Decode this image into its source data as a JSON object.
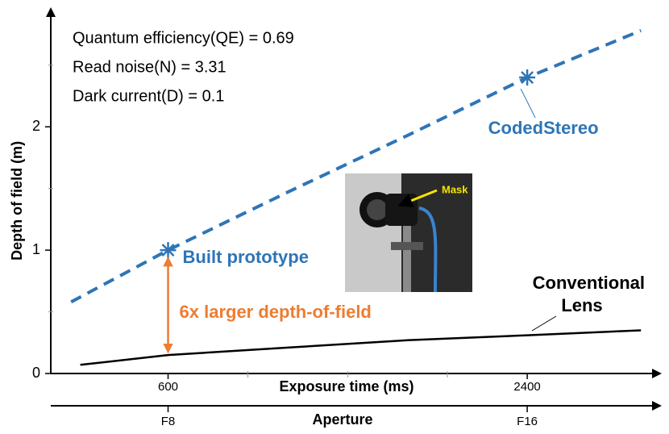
{
  "chart_data": {
    "type": "line",
    "xlabel": "Exposure time (ms)",
    "ylabel": "Depth of field (m)",
    "xlim": [
      0,
      3050
    ],
    "xticks": [
      600,
      2400
    ],
    "xminor_ticks": [
      1000,
      1500,
      2000
    ],
    "ylim": [
      0,
      2.93
    ],
    "yticks": [
      0,
      1,
      2
    ],
    "yminor_ticks": [
      0.5,
      1.5,
      2.5
    ],
    "x2label": "Aperture",
    "x2ticks": [
      {
        "value": 600,
        "label": "F8"
      },
      {
        "value": 2400,
        "label": "F16"
      }
    ],
    "series": [
      {
        "name": "CodedStereo",
        "color": "#2e75b6",
        "dashed": true,
        "x": [
          114,
          600,
          1200,
          1800,
          2400,
          2970
        ],
        "values": [
          0.58,
          1.0,
          1.47,
          1.93,
          2.4,
          2.78
        ]
      },
      {
        "name": "Conventional Lens",
        "color": "#000000",
        "dashed": false,
        "x": [
          160,
          600,
          1200,
          1800,
          2400,
          2970
        ],
        "values": [
          0.07,
          0.15,
          0.21,
          0.27,
          0.31,
          0.35
        ]
      }
    ],
    "markers": [
      {
        "x": 600,
        "y": 1.0,
        "label": "Built prototype",
        "color": "#2e75b6"
      },
      {
        "x": 2400,
        "y": 2.4,
        "label": "CodedStereo",
        "color": "#2e75b6"
      }
    ],
    "notes": [
      "Quantum efficiency(QE) = 0.69",
      "Read noise(N) = 3.31",
      "Dark current(D) =  0.1"
    ],
    "comparison_label": "6x larger depth-of-field",
    "comparison_color": "#ed7d31",
    "conventional_label": [
      "Conventional",
      "Lens"
    ],
    "inset_label": "Mask"
  }
}
